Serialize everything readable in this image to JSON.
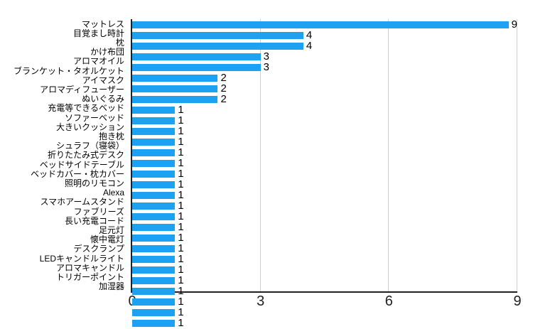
{
  "chart_data": {
    "type": "bar",
    "orientation": "horizontal",
    "title": "",
    "xlabel": "",
    "ylabel": "",
    "categories": [
      "マットレス",
      "目覚まし時計",
      "枕",
      "かけ布団",
      "アロマオイル",
      "ブランケット・タオルケット",
      "アイマスク",
      "アロマディフューザー",
      "ぬいぐるみ",
      "充電等できるベッド",
      "ソファーベッド",
      "大きいクッション",
      "抱き枕",
      "シュラフ（寝袋）",
      "折りたたみ式デスク",
      "ベッドサイドテーブル",
      "ベッドカバー・枕カバー",
      "照明のリモコン",
      "Alexa",
      "スマホアームスタンド",
      "ファブリーズ",
      "長い充電コード",
      "足元灯",
      "懐中電灯",
      "デスクランプ",
      "LEDキャンドルライト",
      "アロマキャンドル",
      "トリガーポイント",
      "加湿器"
    ],
    "values": [
      9,
      4,
      4,
      3,
      3,
      2,
      2,
      2,
      1,
      1,
      1,
      1,
      1,
      1,
      1,
      1,
      1,
      1,
      1,
      1,
      1,
      1,
      1,
      1,
      1,
      1,
      1,
      1,
      1
    ],
    "xlim": [
      0,
      9
    ],
    "x_ticks": [
      0,
      3,
      6,
      9
    ],
    "grid": true,
    "legend": false,
    "value_labels": true,
    "bar_color": "#1da1f2",
    "gridline_color": "#cfcfcf",
    "axis_color": "#212121",
    "background_color": "#ffffff"
  }
}
